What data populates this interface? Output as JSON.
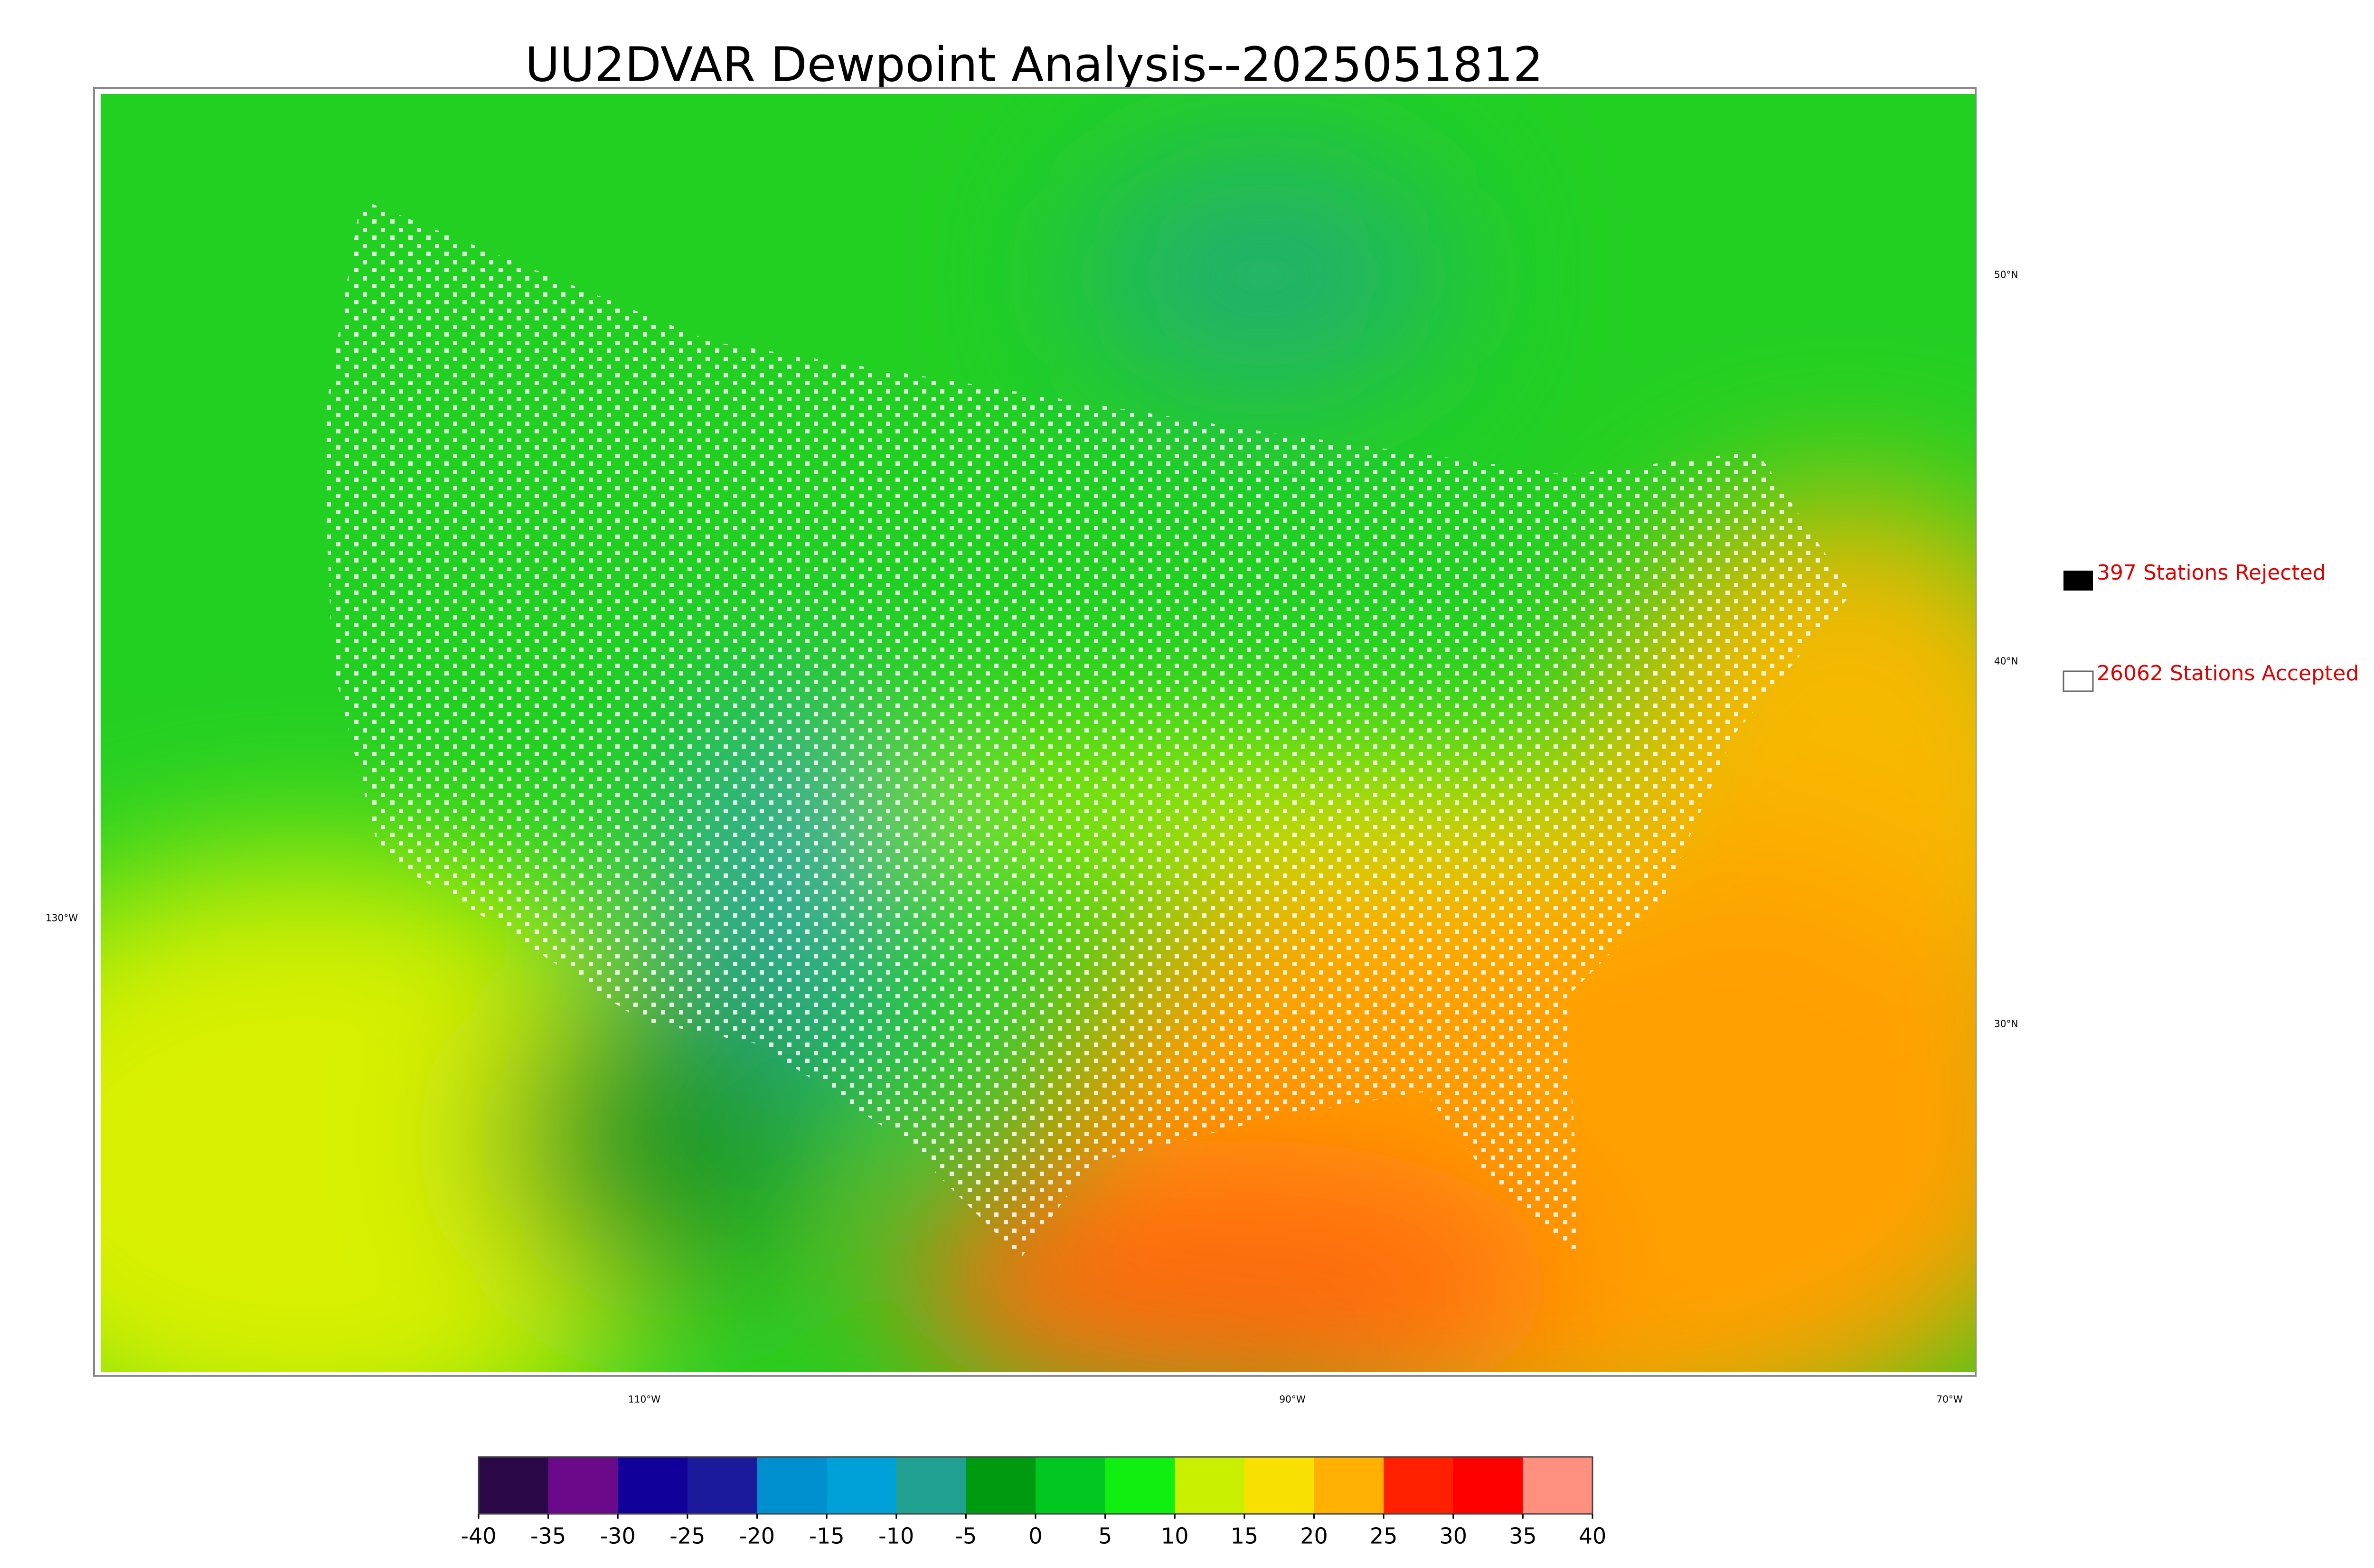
{
  "title": "UU2DVAR Dewpoint Analysis--2025051812",
  "legend": [
    {
      "label": "397 Stations Rejected",
      "color": "#000000"
    },
    {
      "label": "26062 Stations Accepted",
      "color": "#ffffff"
    }
  ],
  "map": {
    "lon_labels": [
      "130°W",
      "110°W",
      "90°W",
      "70°W"
    ],
    "lat_labels": [
      "50°N",
      "40°N",
      "30°N"
    ]
  },
  "colorbar": {
    "xlim": [
      -40,
      40
    ],
    "ticks": [
      -40,
      -35,
      -30,
      -25,
      -20,
      -15,
      -10,
      -5,
      0,
      5,
      10,
      15,
      20,
      25,
      30,
      35,
      40
    ],
    "colors": [
      "#2a0848",
      "#6a0a8a",
      "#12009a",
      "#1a1a9a",
      "#0090d0",
      "#00a0d8",
      "#20a090",
      "#009a10",
      "#00c820",
      "#10f010",
      "#c8f000",
      "#f8e000",
      "#ffb000",
      "#ff2000",
      "#ff0000",
      "#ff9080"
    ]
  }
}
